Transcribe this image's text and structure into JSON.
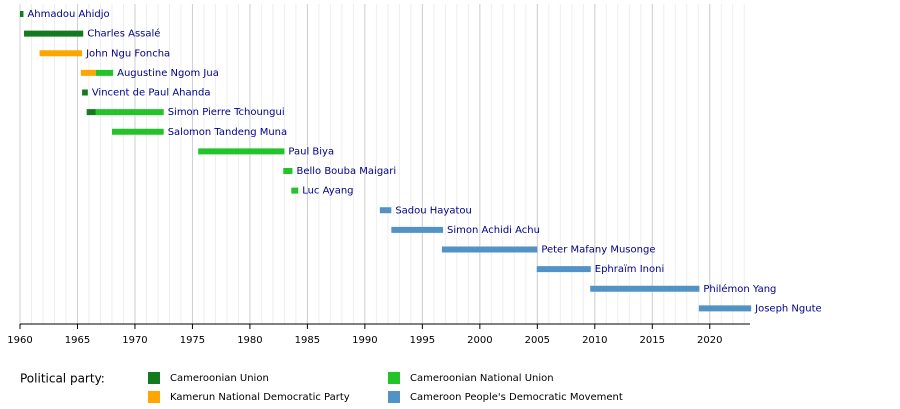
{
  "chart_data": {
    "type": "timeline",
    "categories": [
      "Ahmadou Ahidjo",
      "Charles Assalé",
      "John Ngu Foncha",
      "Augustine Ngom Jua",
      "Vincent de Paul Ahanda",
      "Simon Pierre Tchoungui",
      "Salomon Tandeng Muna",
      "Paul Biya",
      "Bello Bouba Maigari",
      "Luc Ayang",
      "Sadou Hayatou",
      "Simon Achidi Achu",
      "Peter Mafany Musonge",
      "Ephraïm Inoni",
      "Philémon Yang",
      "Joseph Ngute"
    ],
    "series": [
      {
        "name": "Cameroonian Union",
        "color": "#137a1f",
        "values": [
          [
            1960,
            1960.3
          ],
          [
            1960.35,
            1965.5
          ],
          null,
          null,
          [
            1965.4,
            1965.9
          ],
          [
            1965.8,
            1966.6
          ],
          null,
          null,
          null,
          null,
          null,
          null,
          null,
          null,
          null,
          null
        ]
      },
      {
        "name": "Kamerun National Democratic Party",
        "color": "#ffa500",
        "values": [
          null,
          null,
          [
            1961.7,
            1965.4
          ],
          [
            1965.3,
            1966.6
          ],
          null,
          null,
          null,
          null,
          null,
          null,
          null,
          null,
          null,
          null,
          null,
          null
        ]
      },
      {
        "name": "Cameroonian National Union",
        "color": "#22c42a",
        "values": [
          null,
          null,
          null,
          [
            1966.6,
            1968.1
          ],
          null,
          [
            1966.6,
            1972.5
          ],
          [
            1968,
            1972.5
          ],
          [
            1975.5,
            1983
          ],
          [
            1982.9,
            1983.7
          ],
          [
            1983.6,
            1984.2
          ],
          null,
          null,
          null,
          null,
          null,
          null
        ]
      },
      {
        "name": "Cameroon People's Democratic Movement",
        "color": "#5292c5",
        "values": [
          null,
          null,
          null,
          null,
          null,
          null,
          null,
          null,
          null,
          null,
          [
            1991.3,
            1992.3
          ],
          [
            1992.3,
            1996.8
          ],
          [
            1996.7,
            2005
          ],
          [
            2004.95,
            2009.65
          ],
          [
            2009.6,
            2019.1
          ],
          [
            2019.05,
            2023.6
          ]
        ]
      }
    ],
    "xlim": [
      1960,
      2023.5
    ],
    "xticks": [
      1960,
      1965,
      1970,
      1975,
      1980,
      1985,
      1990,
      1995,
      2000,
      2005,
      2010,
      2015,
      2020
    ],
    "minor_grid_step": 1,
    "grid": true,
    "legend_title": "Political party:"
  }
}
